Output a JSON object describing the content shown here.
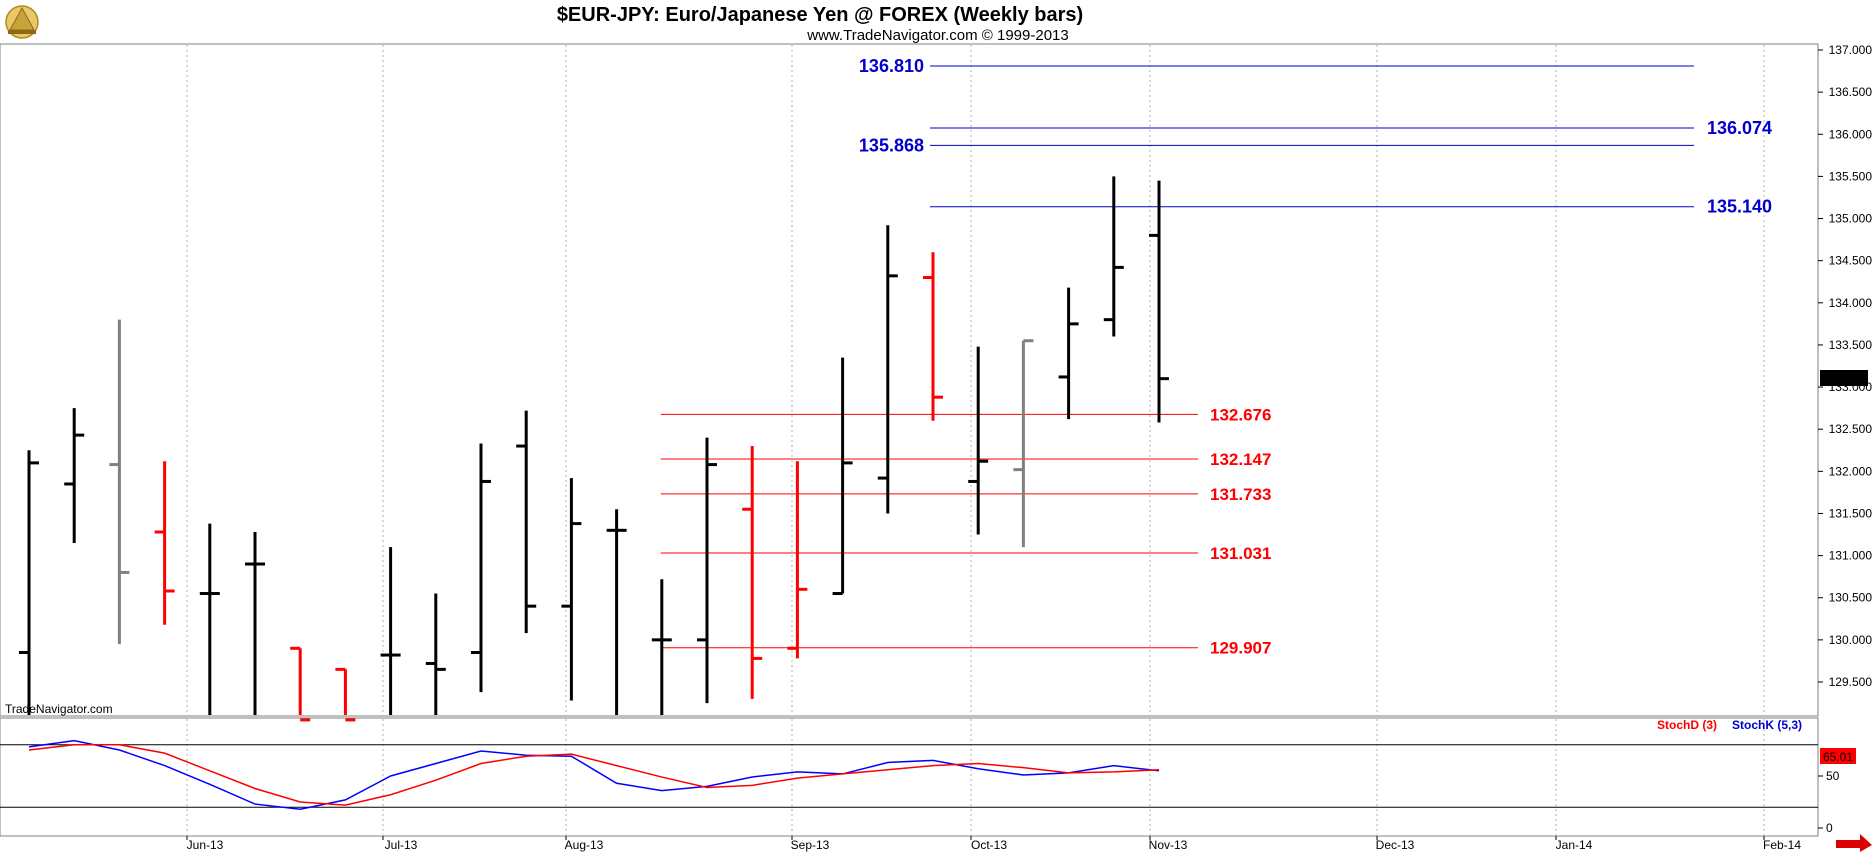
{
  "header": {
    "title": "$EUR-JPY:  Euro/Japanese Yen @ FOREX  (Weekly bars)",
    "subtitle": "www.TradeNavigator.com © 1999-2013",
    "watermark": "TradeNavigator.com"
  },
  "chart_data": [
    {
      "type": "ohlc",
      "title": "$EUR-JPY:  Euro/Japanese Yen @ FOREX  (Weekly bars)",
      "ylim": [
        129.1,
        137.05
      ],
      "y_ticks": [
        "137.000",
        "136.500",
        "136.000",
        "135.500",
        "135.000",
        "134.500",
        "134.000",
        "133.500",
        "133.000",
        "132.500",
        "132.000",
        "131.500",
        "131.000",
        "130.500",
        "130.000",
        "129.500"
      ],
      "x_ticks": [
        "Jun-13",
        "Jul-13",
        "Aug-13",
        "Sep-13",
        "Oct-13",
        "Nov-13",
        "Dec-13",
        "Jan-14",
        "Feb-14"
      ],
      "last_price": "133.110",
      "colors": {
        "up": "#000000",
        "down": "#ff0000",
        "neutral": "#808080",
        "resistance": "#0000cc",
        "support": "#ff0000"
      },
      "bars": [
        {
          "week": 1,
          "open": 129.85,
          "high": 132.25,
          "low": 128.9,
          "close": 132.1,
          "color": "black"
        },
        {
          "week": 2,
          "open": 131.85,
          "high": 132.75,
          "low": 131.15,
          "close": 132.43,
          "color": "black"
        },
        {
          "week": 3,
          "open": 132.08,
          "high": 133.8,
          "low": 129.95,
          "close": 130.8,
          "color": "gray"
        },
        {
          "week": 4,
          "open": 131.28,
          "high": 132.12,
          "low": 130.18,
          "close": 130.58,
          "color": "red"
        },
        {
          "week": 5,
          "open": 130.55,
          "high": 131.38,
          "low": 129.0,
          "close": 130.55,
          "color": "black"
        },
        {
          "week": 6,
          "open": 130.9,
          "high": 131.28,
          "low": 129.0,
          "close": 130.9,
          "color": "black"
        },
        {
          "week": 7,
          "open": 129.9,
          "high": 129.9,
          "low": 129.05,
          "close": 129.05,
          "color": "red"
        },
        {
          "week": 8,
          "open": 129.65,
          "high": 129.65,
          "low": 129.05,
          "close": 129.05,
          "color": "red"
        },
        {
          "week": 9,
          "open": 129.82,
          "high": 131.1,
          "low": 129.05,
          "close": 129.82,
          "color": "black"
        },
        {
          "week": 10,
          "open": 129.72,
          "high": 130.55,
          "low": 129.1,
          "close": 129.65,
          "color": "black"
        },
        {
          "week": 11,
          "open": 129.85,
          "high": 132.33,
          "low": 129.38,
          "close": 131.88,
          "color": "black"
        },
        {
          "week": 12,
          "open": 132.3,
          "high": 132.72,
          "low": 130.08,
          "close": 130.4,
          "color": "black"
        },
        {
          "week": 13,
          "open": 130.4,
          "high": 131.92,
          "low": 129.28,
          "close": 131.38,
          "color": "black"
        },
        {
          "week": 14,
          "open": 131.3,
          "high": 131.55,
          "low": 129.05,
          "close": 131.3,
          "color": "black"
        },
        {
          "week": 15,
          "open": 130.0,
          "high": 130.72,
          "low": 129.05,
          "close": 130.0,
          "color": "black"
        },
        {
          "week": 16,
          "open": 130.0,
          "high": 132.4,
          "low": 129.25,
          "close": 132.08,
          "color": "black"
        },
        {
          "week": 17,
          "open": 131.55,
          "high": 132.3,
          "low": 129.3,
          "close": 129.78,
          "color": "red"
        },
        {
          "week": 18,
          "open": 129.9,
          "high": 132.12,
          "low": 129.78,
          "close": 130.6,
          "color": "red"
        },
        {
          "week": 19,
          "open": 130.55,
          "high": 133.35,
          "low": 130.55,
          "close": 132.1,
          "color": "black"
        },
        {
          "week": 20,
          "open": 131.92,
          "high": 134.92,
          "low": 131.5,
          "close": 134.32,
          "color": "black"
        },
        {
          "week": 21,
          "open": 134.3,
          "high": 134.6,
          "low": 132.6,
          "close": 132.88,
          "color": "red"
        },
        {
          "week": 22,
          "open": 131.88,
          "high": 133.48,
          "low": 131.25,
          "close": 132.12,
          "color": "black"
        },
        {
          "week": 23,
          "open": 132.02,
          "high": 133.55,
          "low": 131.1,
          "close": 133.55,
          "color": "gray"
        },
        {
          "week": 24,
          "open": 133.12,
          "high": 134.18,
          "low": 132.62,
          "close": 133.75,
          "color": "black"
        },
        {
          "week": 25,
          "open": 133.8,
          "high": 135.5,
          "low": 133.6,
          "close": 134.42,
          "color": "black"
        },
        {
          "week": 26,
          "open": 134.8,
          "high": 135.45,
          "low": 132.58,
          "close": 133.1,
          "color": "black"
        }
      ],
      "resistance_levels": [
        {
          "value": 136.81,
          "label": "136.810",
          "label_side": "left",
          "from_week": 22,
          "to_week": 38
        },
        {
          "value": 136.074,
          "label": "136.074",
          "label_side": "right",
          "from_week": 22,
          "to_week": 38
        },
        {
          "value": 135.868,
          "label": "135.868",
          "label_side": "left",
          "from_week": 22,
          "to_week": 38
        },
        {
          "value": 135.14,
          "label": "135.140",
          "label_side": "right",
          "from_week": 22,
          "to_week": 38
        }
      ],
      "support_levels": [
        {
          "value": 132.676,
          "label": "132.676",
          "from_week": 15,
          "to_week": 27
        },
        {
          "value": 132.147,
          "label": "132.147",
          "from_week": 15,
          "to_week": 27
        },
        {
          "value": 131.733,
          "label": "131.733",
          "from_week": 15,
          "to_week": 27
        },
        {
          "value": 131.031,
          "label": "131.031",
          "from_week": 15,
          "to_week": 27
        },
        {
          "value": 129.907,
          "label": "129.907",
          "from_week": 15,
          "to_week": 27
        }
      ]
    },
    {
      "type": "line",
      "legend": [
        "StochD (3)",
        "StochK (5,3)"
      ],
      "ylim": [
        0,
        100
      ],
      "y_ticks": [
        "50",
        "0"
      ],
      "last_value": "65.01",
      "series": [
        {
          "name": "StochK (5,3)",
          "color": "#0000ff",
          "values": [
            78,
            84,
            75,
            60,
            42,
            23,
            18,
            27,
            50,
            62,
            74,
            70,
            69,
            43,
            36,
            40,
            49,
            54,
            52,
            63,
            65,
            57,
            51,
            53,
            60,
            55
          ]
        },
        {
          "name": "StochD (3)",
          "color": "#ff0000",
          "values": [
            75,
            80,
            80,
            72,
            55,
            38,
            25,
            22,
            32,
            46,
            62,
            69,
            71,
            60,
            49,
            39,
            41,
            48,
            52,
            56,
            60,
            62,
            58,
            53,
            54,
            56
          ]
        }
      ]
    }
  ]
}
